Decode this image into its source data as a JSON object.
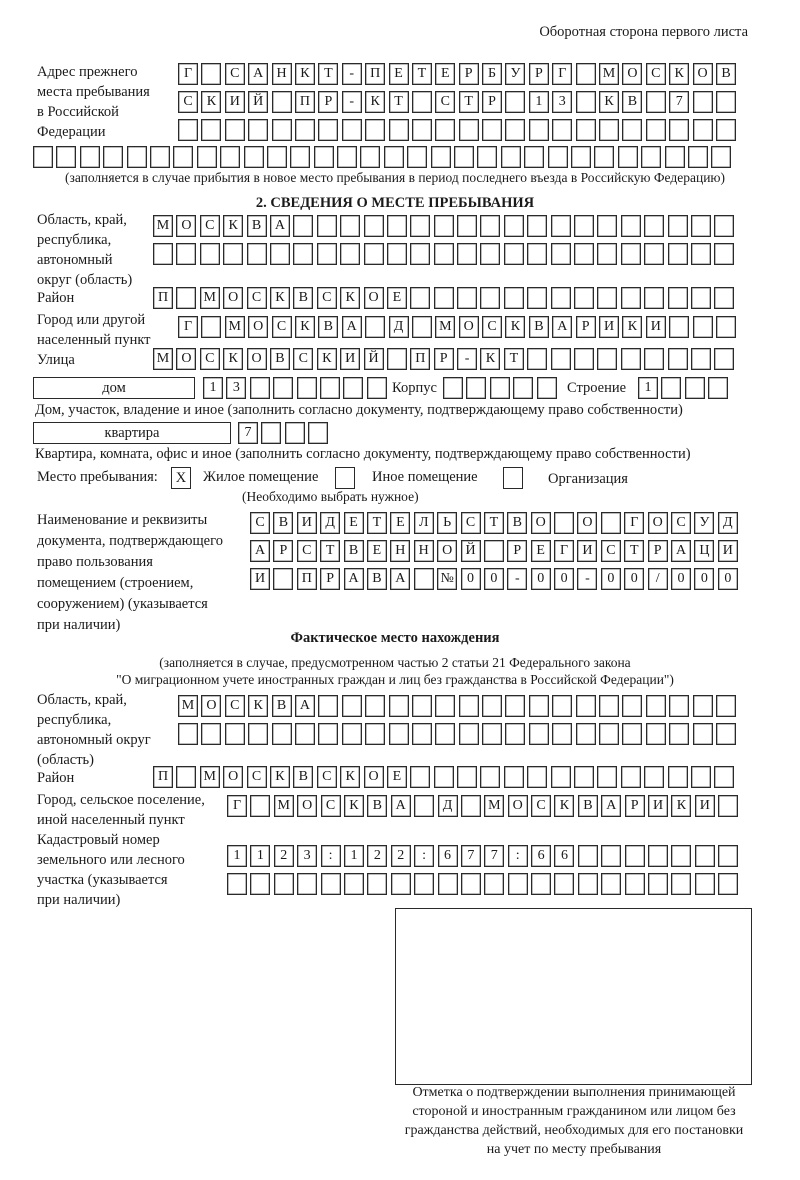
{
  "header": {
    "sheet_side": "Оборотная сторона первого листа"
  },
  "previous_address": {
    "label": "Адрес прежнего\nместа пребывания\nв Российской\nФедерации",
    "rows": [
      [
        "Г",
        "",
        "С",
        "А",
        "Н",
        "К",
        "Т",
        "-",
        "П",
        "Е",
        "Т",
        "Е",
        "Р",
        "Б",
        "У",
        "Р",
        "Г",
        "",
        "М",
        "О",
        "С",
        "К",
        "О",
        "В"
      ],
      [
        "С",
        "К",
        "И",
        "Й",
        "",
        "П",
        "Р",
        "-",
        "К",
        "Т",
        "",
        "С",
        "Т",
        "Р",
        "",
        "1",
        "3",
        "",
        "К",
        "В",
        "",
        "7",
        "",
        ""
      ],
      [
        "",
        "",
        "",
        "",
        "",
        "",
        "",
        "",
        "",
        "",
        "",
        "",
        "",
        "",
        "",
        "",
        "",
        "",
        "",
        "",
        "",
        "",
        "",
        ""
      ],
      [
        "",
        "",
        "",
        "",
        "",
        "",
        "",
        "",
        "",
        "",
        "",
        "",
        "",
        "",
        "",
        "",
        "",
        "",
        "",
        "",
        "",
        "",
        "",
        "",
        "",
        "",
        "",
        "",
        "",
        ""
      ]
    ],
    "note": "(заполняется в случае прибытия в новое место пребывания в период последнего въезда в Российскую Федерацию)"
  },
  "section2": {
    "heading": "2. СВЕДЕНИЯ О МЕСТЕ ПРЕБЫВАНИЯ",
    "region_label": "Область, край,\nреспублика,\nавтономный\nокруг (область)",
    "region_rows": [
      [
        "М",
        "О",
        "С",
        "К",
        "В",
        "А",
        "",
        "",
        "",
        "",
        "",
        "",
        "",
        "",
        "",
        "",
        "",
        "",
        "",
        "",
        "",
        "",
        "",
        "",
        ""
      ],
      [
        "",
        "",
        "",
        "",
        "",
        "",
        "",
        "",
        "",
        "",
        "",
        "",
        "",
        "",
        "",
        "",
        "",
        "",
        "",
        "",
        "",
        "",
        "",
        "",
        ""
      ]
    ],
    "district_label": "Район",
    "district": [
      "П",
      "",
      "М",
      "О",
      "С",
      "К",
      "В",
      "С",
      "К",
      "О",
      "Е",
      "",
      "",
      "",
      "",
      "",
      "",
      "",
      "",
      "",
      "",
      "",
      "",
      "",
      ""
    ],
    "city_label": "Город или другой\nнаселенный пункт",
    "city": [
      "Г",
      "",
      "М",
      "О",
      "С",
      "К",
      "В",
      "А",
      "",
      "Д",
      "",
      "М",
      "О",
      "С",
      "К",
      "В",
      "А",
      "Р",
      "И",
      "К",
      "И",
      "",
      "",
      ""
    ],
    "street_label": "Улица",
    "street": [
      "М",
      "О",
      "С",
      "К",
      "О",
      "В",
      "С",
      "К",
      "И",
      "Й",
      "",
      "П",
      "Р",
      "-",
      "К",
      "Т",
      "",
      "",
      "",
      "",
      "",
      "",
      "",
      "",
      ""
    ],
    "house_type": "дом",
    "house": [
      "1",
      "3",
      "",
      "",
      "",
      "",
      "",
      ""
    ],
    "building_label": "Корпус",
    "building": [
      "",
      "",
      "",
      "",
      ""
    ],
    "structure_label": "Строение",
    "structure": [
      "1",
      "",
      "",
      ""
    ],
    "house_note": "Дом, участок, владение и иное (заполнить согласно документу, подтверждающему право собственности)",
    "apt_type": "квартира",
    "apt": [
      "7",
      "",
      "",
      ""
    ],
    "apt_note": "Квартира, комната, офис и иное (заполнить согласно документу, подтверждающему право собственности)",
    "stay_place_label": "Место пребывания:",
    "options": [
      {
        "mark": "X",
        "label": "Жилое помещение",
        "checked": true
      },
      {
        "mark": "",
        "label": "Иное помещение",
        "checked": false
      },
      {
        "mark": "",
        "label": "Организация",
        "checked": false
      }
    ],
    "choose_note": "(Необходимо выбрать нужное)",
    "doc_label": "Наименование и реквизиты\nдокумента, подтверждающего\nправо пользования\nпомещением (строением,\nсооружением) (указывается\nпри наличии)",
    "doc_rows": [
      [
        "С",
        "В",
        "И",
        "Д",
        "Е",
        "Т",
        "Е",
        "Л",
        "Ь",
        "С",
        "Т",
        "В",
        "О",
        "",
        "О",
        "",
        "Г",
        "О",
        "С",
        "У",
        "Д"
      ],
      [
        "А",
        "Р",
        "С",
        "Т",
        "В",
        "Е",
        "Н",
        "Н",
        "О",
        "Й",
        "",
        "Р",
        "Е",
        "Г",
        "И",
        "С",
        "Т",
        "Р",
        "А",
        "Ц",
        "И"
      ],
      [
        "И",
        "",
        "П",
        "Р",
        "А",
        "В",
        "А",
        "",
        "№",
        "0",
        "0",
        "-",
        "0",
        "0",
        "-",
        "0",
        "0",
        "/",
        "0",
        "0",
        "0"
      ]
    ]
  },
  "actual": {
    "heading": "Фактическое место нахождения",
    "note1": "(заполняется в случае, предусмотренном частью 2 статьи 21 Федерального закона",
    "note2": "\"О миграционном учете иностранных граждан и лиц без гражданства в Российской Федерации\")",
    "region_label": "Область, край,\nреспублика,\nавтономный округ\n(область)",
    "region_rows": [
      [
        "М",
        "О",
        "С",
        "К",
        "В",
        "А",
        "",
        "",
        "",
        "",
        "",
        "",
        "",
        "",
        "",
        "",
        "",
        "",
        "",
        "",
        "",
        "",
        "",
        ""
      ],
      [
        "",
        "",
        "",
        "",
        "",
        "",
        "",
        "",
        "",
        "",
        "",
        "",
        "",
        "",
        "",
        "",
        "",
        "",
        "",
        "",
        "",
        "",
        "",
        ""
      ]
    ],
    "district_label": "Район",
    "district": [
      "П",
      "",
      "М",
      "О",
      "С",
      "К",
      "В",
      "С",
      "К",
      "О",
      "Е",
      "",
      "",
      "",
      "",
      "",
      "",
      "",
      "",
      "",
      "",
      "",
      "",
      "",
      ""
    ],
    "city_label": "Город, сельское поселение,\nиной населенный пункт",
    "city": [
      "Г",
      "",
      "М",
      "О",
      "С",
      "К",
      "В",
      "А",
      "",
      "Д",
      "",
      "М",
      "О",
      "С",
      "К",
      "В",
      "А",
      "Р",
      "И",
      "К",
      "И",
      ""
    ],
    "cadastral_label": "Кадастровый номер\nземельного или лесного\nучастка (указывается\nпри наличии)",
    "cadastral_rows": [
      [
        "1",
        "1",
        "2",
        "3",
        ":",
        "1",
        "2",
        "2",
        ":",
        "6",
        "7",
        "7",
        ":",
        "6",
        "6",
        "",
        "",
        "",
        "",
        "",
        "",
        ""
      ],
      [
        "",
        "",
        "",
        "",
        "",
        "",
        "",
        "",
        "",
        "",
        "",
        "",
        "",
        "",
        "",
        "",
        "",
        "",
        "",
        "",
        "",
        ""
      ]
    ]
  },
  "stamp": {
    "caption": "Отметка о подтверждении выполнения принимающей\nстороной и иностранным гражданином или лицом без\nгражданства действий, необходимых для его постановки\nна учет по месту пребывания"
  }
}
